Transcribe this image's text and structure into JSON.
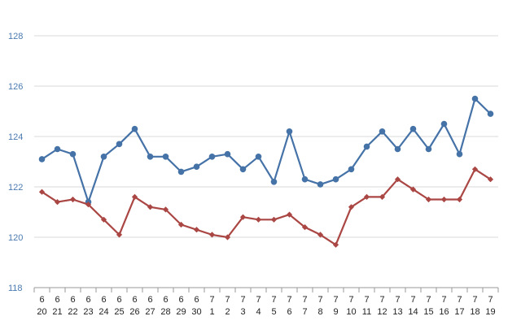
{
  "chart_data": {
    "type": "line",
    "categories": [
      {
        "month": "6",
        "day": "20"
      },
      {
        "month": "6",
        "day": "21"
      },
      {
        "month": "6",
        "day": "22"
      },
      {
        "month": "6",
        "day": "23"
      },
      {
        "month": "6",
        "day": "24"
      },
      {
        "month": "6",
        "day": "25"
      },
      {
        "month": "6",
        "day": "26"
      },
      {
        "month": "6",
        "day": "27"
      },
      {
        "month": "6",
        "day": "28"
      },
      {
        "month": "6",
        "day": "29"
      },
      {
        "month": "6",
        "day": "30"
      },
      {
        "month": "7",
        "day": "1"
      },
      {
        "month": "7",
        "day": "2"
      },
      {
        "month": "7",
        "day": "3"
      },
      {
        "month": "7",
        "day": "4"
      },
      {
        "month": "7",
        "day": "5"
      },
      {
        "month": "7",
        "day": "6"
      },
      {
        "month": "7",
        "day": "7"
      },
      {
        "month": "7",
        "day": "8"
      },
      {
        "month": "7",
        "day": "9"
      },
      {
        "month": "7",
        "day": "10"
      },
      {
        "month": "7",
        "day": "11"
      },
      {
        "month": "7",
        "day": "12"
      },
      {
        "month": "7",
        "day": "13"
      },
      {
        "month": "7",
        "day": "14"
      },
      {
        "month": "7",
        "day": "15"
      },
      {
        "month": "7",
        "day": "16"
      },
      {
        "month": "7",
        "day": "17"
      },
      {
        "month": "7",
        "day": "18"
      },
      {
        "month": "7",
        "day": "19"
      }
    ],
    "series": [
      {
        "color": "#4572a7",
        "marker": "circle",
        "values": [
          123.1,
          123.5,
          123.3,
          121.4,
          123.2,
          123.7,
          124.3,
          123.2,
          123.2,
          122.6,
          122.8,
          123.2,
          123.3,
          122.7,
          123.2,
          122.2,
          124.2,
          122.3,
          122.1,
          122.3,
          122.7,
          123.6,
          124.2,
          123.5,
          124.3,
          123.5,
          124.5,
          123.3,
          125.5,
          124.9
        ]
      },
      {
        "color": "#aa4643",
        "marker": "diamond",
        "values": [
          121.8,
          121.4,
          121.5,
          121.3,
          120.7,
          120.1,
          121.6,
          121.2,
          121.1,
          120.5,
          120.3,
          120.1,
          120.0,
          120.8,
          120.7,
          120.7,
          120.9,
          120.4,
          120.1,
          119.7,
          121.2,
          121.6,
          121.6,
          122.3,
          121.9,
          121.5,
          121.5,
          121.5,
          122.7,
          122.3
        ]
      }
    ],
    "yticks": [
      "118",
      "120",
      "122",
      "124",
      "126",
      "128"
    ],
    "ylim": [
      118,
      128
    ],
    "grid": true,
    "grid_color": "#d9d9d9",
    "axis_color": "#999999"
  }
}
